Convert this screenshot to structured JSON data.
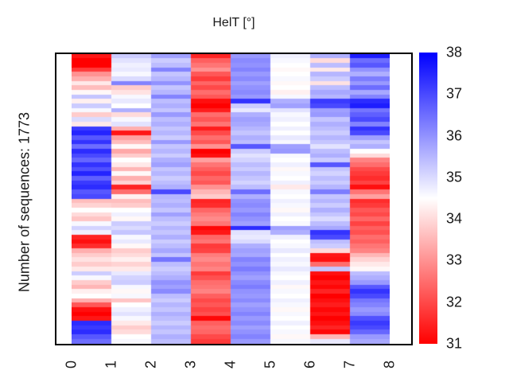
{
  "figure": {
    "background": "#ffffff",
    "text_color": "#1a1a1a"
  },
  "chart_data": {
    "type": "heatmap",
    "title": "HelT [°]",
    "ylabel": "Number of sequences: 1773",
    "num_sequences": 1773,
    "x_tick_labels": [
      "0",
      "1",
      "2",
      "3",
      "4",
      "5",
      "6",
      "7",
      "8"
    ],
    "n_cols": 8,
    "n_rows": 64,
    "grid": false,
    "colorbar": {
      "min": 31,
      "max": 38,
      "tick_labels": [
        "38",
        "37",
        "36",
        "35",
        "34",
        "33",
        "32",
        "31"
      ],
      "tick_values": [
        38,
        37,
        36,
        35,
        34,
        33,
        32,
        31
      ],
      "colormap": "red-white-blue",
      "low_color": "#ff0000",
      "mid_color": "#ffffff",
      "high_color": "#0000ff"
    },
    "values": [
      [
        31.3,
        35.2,
        35.8,
        31.5,
        35.9,
        34.7,
        35.6,
        37.6
      ],
      [
        31.0,
        34.9,
        35.2,
        32.3,
        36.1,
        34.6,
        34.0,
        36.5
      ],
      [
        31.0,
        34.7,
        35.4,
        32.6,
        36.0,
        34.5,
        35.4,
        36.8
      ],
      [
        31.8,
        34.8,
        36.2,
        33.0,
        36.2,
        34.4,
        34.2,
        36.0
      ],
      [
        33.0,
        34.6,
        35.3,
        32.2,
        35.9,
        34.5,
        35.5,
        35.6
      ],
      [
        33.4,
        35.0,
        35.5,
        31.8,
        36.1,
        34.6,
        35.2,
        36.3
      ],
      [
        34.2,
        36.2,
        36.0,
        32.4,
        35.8,
        34.4,
        34.1,
        35.9
      ],
      [
        33.6,
        33.8,
        35.3,
        32.0,
        36.0,
        34.5,
        35.4,
        36.5
      ],
      [
        34.4,
        34.1,
        35.5,
        32.5,
        36.1,
        34.3,
        35.7,
        35.7
      ],
      [
        35.3,
        34.6,
        36.2,
        32.2,
        35.9,
        34.6,
        35.5,
        36.2
      ],
      [
        34.3,
        34.8,
        35.4,
        31.2,
        37.3,
        35.6,
        37.2,
        37.4
      ],
      [
        35.2,
        34.5,
        35.6,
        31.0,
        35.2,
        35.8,
        37.0,
        37.6
      ],
      [
        34.6,
        35.6,
        35.3,
        31.4,
        34.8,
        34.9,
        35.8,
        36.4
      ],
      [
        33.8,
        34.0,
        35.9,
        32.5,
        35.6,
        34.6,
        35.9,
        36.7
      ],
      [
        35.0,
        34.6,
        35.4,
        32.2,
        35.8,
        34.7,
        35.3,
        37.0
      ],
      [
        34.2,
        34.9,
        35.6,
        32.6,
        35.7,
        34.5,
        35.6,
        36.2
      ],
      [
        37.2,
        33.4,
        35.3,
        31.4,
        35.5,
        34.7,
        35.4,
        37.3
      ],
      [
        37.5,
        31.3,
        35.5,
        32.0,
        35.3,
        34.5,
        35.2,
        37.0
      ],
      [
        36.8,
        33.2,
        35.2,
        32.5,
        35.6,
        34.8,
        35.5,
        35.8
      ],
      [
        37.3,
        33.6,
        35.9,
        32.2,
        35.4,
        34.6,
        35.3,
        35.3
      ],
      [
        36.5,
        34.4,
        35.3,
        33.0,
        36.8,
        35.8,
        34.9,
        35.6
      ],
      [
        37.4,
        33.3,
        35.5,
        31.0,
        35.2,
        35.9,
        35.4,
        34.5
      ],
      [
        37.0,
        33.8,
        35.2,
        31.2,
        34.9,
        34.6,
        35.6,
        34.0
      ],
      [
        36.6,
        34.5,
        35.6,
        33.2,
        35.1,
        34.5,
        35.2,
        32.8
      ],
      [
        37.3,
        34.2,
        35.8,
        32.6,
        35.4,
        34.7,
        36.8,
        32.5
      ],
      [
        36.9,
        33.5,
        35.3,
        32.3,
        35.2,
        34.4,
        35.3,
        32.0
      ],
      [
        37.5,
        34.4,
        35.5,
        32.0,
        35.5,
        34.6,
        35.1,
        31.8
      ],
      [
        36.7,
        33.4,
        35.2,
        32.4,
        35.3,
        34.5,
        35.4,
        31.6
      ],
      [
        37.2,
        33.9,
        35.4,
        32.2,
        35.1,
        34.7,
        35.2,
        31.9
      ],
      [
        37.4,
        31.5,
        35.6,
        33.0,
        35.4,
        34.2,
        35.5,
        31.2
      ],
      [
        36.8,
        32.5,
        37.0,
        33.5,
        36.5,
        34.6,
        36.3,
        32.6
      ],
      [
        37.0,
        34.3,
        35.5,
        33.8,
        35.6,
        34.5,
        35.3,
        33.2
      ],
      [
        33.6,
        33.6,
        35.4,
        31.5,
        36.0,
        34.7,
        35.5,
        31.6
      ],
      [
        33.9,
        33.8,
        35.6,
        31.6,
        36.1,
        34.6,
        35.2,
        31.8
      ],
      [
        34.5,
        34.5,
        35.3,
        32.4,
        35.9,
        34.4,
        35.6,
        32.2
      ],
      [
        34.0,
        34.7,
        35.8,
        32.7,
        36.2,
        34.7,
        35.3,
        32.0
      ],
      [
        33.7,
        34.4,
        35.4,
        32.9,
        36.0,
        34.5,
        35.0,
        32.4
      ],
      [
        34.6,
        35.2,
        35.2,
        32.6,
        35.8,
        34.6,
        35.4,
        31.9
      ],
      [
        35.1,
        35.0,
        35.5,
        31.1,
        37.4,
        35.8,
        35.7,
        32.3
      ],
      [
        34.7,
        35.3,
        35.3,
        31.3,
        34.9,
        35.6,
        37.3,
        32.1
      ],
      [
        31.5,
        34.6,
        35.6,
        32.4,
        34.8,
        34.7,
        37.0,
        32.5
      ],
      [
        31.2,
        34.8,
        35.2,
        32.6,
        35.0,
        34.5,
        35.4,
        32.3
      ],
      [
        31.6,
        34.4,
        35.4,
        31.8,
        35.6,
        34.6,
        35.2,
        32.6
      ],
      [
        33.4,
        33.8,
        35.7,
        31.9,
        35.8,
        34.8,
        34.0,
        32.8
      ],
      [
        33.8,
        34.0,
        35.3,
        32.7,
        35.7,
        34.5,
        31.3,
        33.5
      ],
      [
        34.1,
        34.3,
        36.4,
        32.9,
        36.2,
        34.7,
        31.2,
        33.9
      ],
      [
        33.8,
        33.9,
        35.4,
        32.6,
        36.0,
        34.6,
        32.5,
        34.2
      ],
      [
        34.2,
        34.2,
        35.2,
        32.8,
        36.3,
        34.8,
        35.3,
        34.4
      ],
      [
        35.2,
        34.8,
        35.4,
        31.8,
        36.0,
        34.6,
        31.2,
        35.4
      ],
      [
        34.6,
        35.1,
        35.6,
        32.1,
        35.8,
        34.5,
        31.0,
        35.6
      ],
      [
        33.8,
        35.2,
        36.0,
        32.5,
        36.1,
        34.7,
        31.3,
        35.9
      ],
      [
        33.5,
        34.6,
        35.8,
        32.6,
        36.3,
        34.4,
        31.1,
        36.8
      ],
      [
        34.3,
        34.4,
        36.1,
        32.8,
        36.0,
        34.6,
        31.5,
        37.3
      ],
      [
        34.5,
        34.6,
        35.4,
        32.3,
        35.9,
        34.5,
        31.0,
        37.0
      ],
      [
        33.4,
        33.7,
        35.2,
        32.0,
        36.1,
        34.7,
        31.2,
        36.4
      ],
      [
        32.2,
        34.5,
        35.5,
        32.2,
        35.8,
        34.6,
        31.4,
        36.2
      ],
      [
        31.2,
        34.7,
        35.3,
        31.9,
        36.0,
        34.4,
        31.1,
        35.9
      ],
      [
        31.0,
        34.9,
        35.6,
        32.1,
        36.2,
        34.6,
        31.3,
        36.1
      ],
      [
        31.3,
        34.6,
        35.4,
        31.1,
        35.9,
        34.5,
        31.0,
        36.9
      ],
      [
        37.4,
        34.2,
        35.2,
        32.3,
        36.1,
        34.7,
        31.2,
        37.2
      ],
      [
        37.2,
        33.8,
        35.5,
        32.5,
        35.8,
        34.5,
        31.5,
        37.0
      ],
      [
        37.4,
        34.0,
        35.3,
        32.4,
        36.0,
        34.6,
        31.1,
        36.6
      ],
      [
        36.8,
        34.5,
        35.6,
        32.0,
        36.2,
        34.4,
        33.5,
        35.9
      ],
      [
        36.5,
        34.6,
        35.4,
        31.8,
        35.9,
        34.6,
        34.8,
        35.7
      ]
    ]
  }
}
